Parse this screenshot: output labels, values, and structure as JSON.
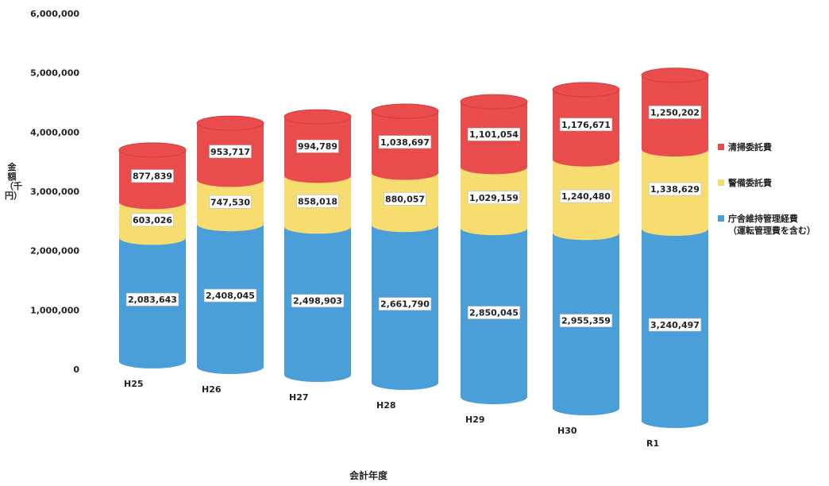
{
  "chart_data": {
    "type": "bar",
    "stacked": true,
    "title": "",
    "xlabel": "会計年度",
    "ylabel": "金額（千円）",
    "ylim": [
      0,
      6000000
    ],
    "yticks": [
      "0",
      "1,000,000",
      "2,000,000",
      "3,000,000",
      "4,000,000",
      "5,000,000",
      "6,000,000"
    ],
    "categories": [
      "H25",
      "H26",
      "H27",
      "H28",
      "H29",
      "H30",
      "R1"
    ],
    "series": [
      {
        "name": "庁舎維持管理経費\n（運転管理費を含む）",
        "color": "#4a9fd8",
        "values": [
          2083643,
          2408045,
          2498903,
          2661790,
          2850045,
          2955359,
          3240497
        ],
        "labels": [
          "2,083,643",
          "2,408,045",
          "2,498,903",
          "2,661,790",
          "2,850,045",
          "2,955,359",
          "3,240,497"
        ]
      },
      {
        "name": "警備委託費",
        "color": "#f7dc6f",
        "values": [
          603026,
          747530,
          858018,
          880057,
          1029159,
          1240480,
          1338629
        ],
        "labels": [
          "603,026",
          "747,530",
          "858,018",
          "880,057",
          "1,029,159",
          "1,240,480",
          "1,338,629"
        ]
      },
      {
        "name": "清掃委託費",
        "color": "#e84c4c",
        "values": [
          877839,
          953717,
          994789,
          1038697,
          1101054,
          1176671,
          1250202
        ],
        "labels": [
          "877,839",
          "953,717",
          "994,789",
          "1,038,697",
          "1,101,054",
          "1,176,671",
          "1,250,202"
        ]
      }
    ],
    "legend_position": "right",
    "grid": false
  }
}
